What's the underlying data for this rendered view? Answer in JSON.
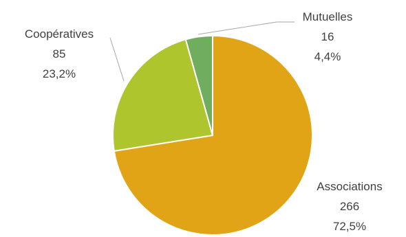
{
  "chart_data": {
    "type": "pie",
    "title": "",
    "slices": [
      {
        "label": "Associations",
        "value": 266,
        "percent_label": "72,5%",
        "color": "#E0A416"
      },
      {
        "label": "Coopératives",
        "value": 85,
        "percent_label": "23,2%",
        "color": "#AFC52E"
      },
      {
        "label": "Mutuelles",
        "value": 16,
        "percent_label": "4,4%",
        "color": "#70AD5E"
      }
    ],
    "start_angle_deg": 0,
    "direction": "clockwise",
    "legend": "none",
    "slice_border_color": "#ffffff",
    "leader_line_color": "#A6A6A6"
  }
}
